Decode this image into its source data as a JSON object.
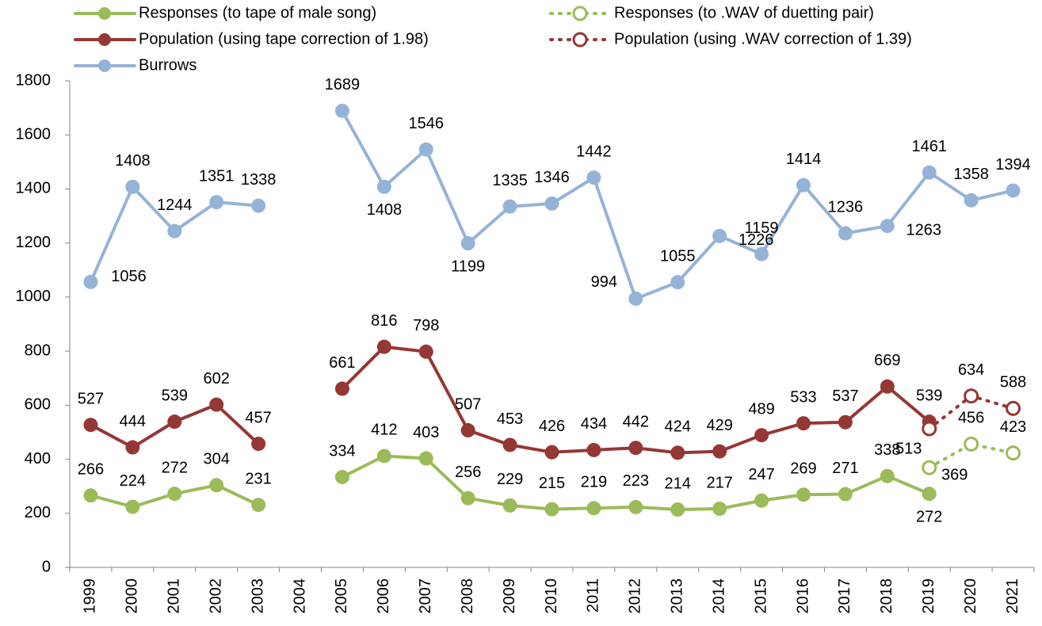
{
  "chart_data": {
    "type": "line",
    "categories": [
      "1999",
      "2000",
      "2001",
      "2002",
      "2003",
      "2004",
      "2005",
      "2006",
      "2007",
      "2008",
      "2009",
      "2010",
      "2011",
      "2012",
      "2013",
      "2014",
      "2015",
      "2016",
      "2017",
      "2018",
      "2019",
      "2020",
      "2021"
    ],
    "series": [
      {
        "name": "Responses (to tape of male song)",
        "color": "#9bbb59",
        "line_style": "solid",
        "marker": "filled",
        "values": [
          266,
          224,
          272,
          304,
          231,
          null,
          334,
          412,
          403,
          256,
          229,
          215,
          219,
          223,
          214,
          217,
          247,
          269,
          271,
          338,
          272,
          null,
          null
        ]
      },
      {
        "name": "Responses (to .WAV of duetting pair)",
        "color": "#9bbb59",
        "line_style": "dotted",
        "marker": "open",
        "values": [
          null,
          null,
          null,
          null,
          null,
          null,
          null,
          null,
          null,
          null,
          null,
          null,
          null,
          null,
          null,
          null,
          null,
          null,
          null,
          null,
          369,
          456,
          423
        ]
      },
      {
        "name": "Population (using tape correction of 1.98)",
        "color": "#953735",
        "line_style": "solid",
        "marker": "filled",
        "values": [
          527,
          444,
          539,
          602,
          457,
          null,
          661,
          816,
          798,
          507,
          453,
          426,
          434,
          442,
          424,
          429,
          489,
          533,
          537,
          669,
          539,
          null,
          null
        ]
      },
      {
        "name": "Population (using .WAV correction of 1.39)",
        "color": "#953735",
        "line_style": "dotted",
        "marker": "open",
        "values": [
          null,
          null,
          null,
          null,
          null,
          null,
          null,
          null,
          null,
          null,
          null,
          null,
          null,
          null,
          null,
          null,
          null,
          null,
          null,
          null,
          513,
          634,
          588
        ]
      },
      {
        "name": "Burrows",
        "color": "#95b3d7",
        "line_style": "solid",
        "marker": "filled",
        "values": [
          1056,
          1408,
          1244,
          1351,
          1338,
          null,
          1689,
          1408,
          1546,
          1199,
          1335,
          1346,
          1442,
          994,
          1055,
          1226,
          1159,
          1414,
          1236,
          1263,
          1461,
          1358,
          1394
        ]
      }
    ],
    "ylim": [
      0,
      1800
    ],
    "yticks": [
      0,
      200,
      400,
      600,
      800,
      1000,
      1200,
      1400,
      1600,
      1800
    ],
    "grid": false
  }
}
